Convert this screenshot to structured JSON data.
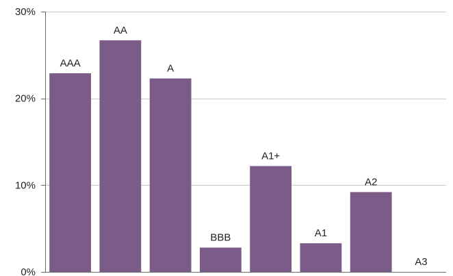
{
  "colors": {
    "bar": "#7b5c89",
    "gridline": "#c8c8c8",
    "axis": "#666666",
    "text": "#222222"
  },
  "chart_data": {
    "type": "bar",
    "title": "",
    "xlabel": "",
    "ylabel": "",
    "ylim": [
      0,
      30
    ],
    "yticks": [
      0,
      10,
      20,
      30
    ],
    "ytick_labels": [
      "0%",
      "10%",
      "20%",
      "30%"
    ],
    "grid": true,
    "legend": "none",
    "categories": [
      "AAA",
      "AA",
      "A",
      "BBB",
      "A1+",
      "A1",
      "A2",
      "A3"
    ],
    "values": [
      22.9,
      26.7,
      22.3,
      2.8,
      12.2,
      3.3,
      9.2,
      0
    ]
  }
}
